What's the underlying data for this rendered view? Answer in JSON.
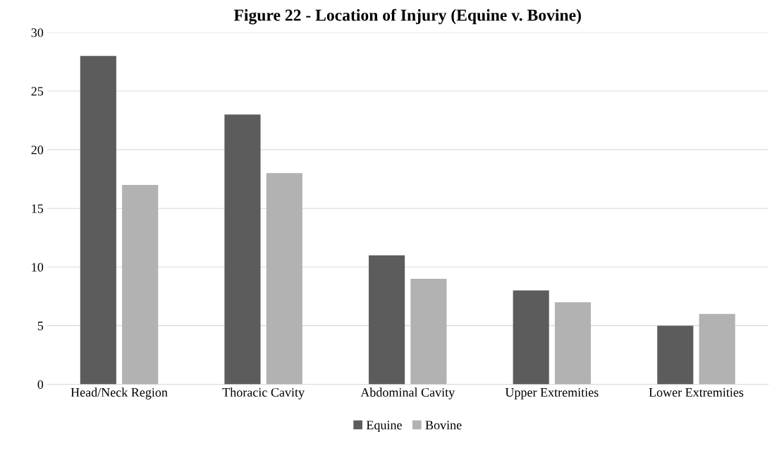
{
  "chart_data": {
    "type": "bar",
    "title": "Figure 22 - Location of Injury (Equine v. Bovine)",
    "categories": [
      "Head/Neck Region",
      "Thoracic Cavity",
      "Abdominal Cavity",
      "Upper Extremities",
      "Lower Extremities"
    ],
    "series": [
      {
        "name": "Equine",
        "color": "#5c5c5c",
        "values": [
          28,
          23,
          11,
          8,
          5
        ]
      },
      {
        "name": "Bovine",
        "color": "#b2b2b2",
        "values": [
          17,
          18,
          9,
          7,
          6
        ]
      }
    ],
    "ylim": [
      0,
      30
    ],
    "yticks": [
      0,
      5,
      10,
      15,
      20,
      25,
      30
    ],
    "grid": "y",
    "legend": "bottom"
  }
}
